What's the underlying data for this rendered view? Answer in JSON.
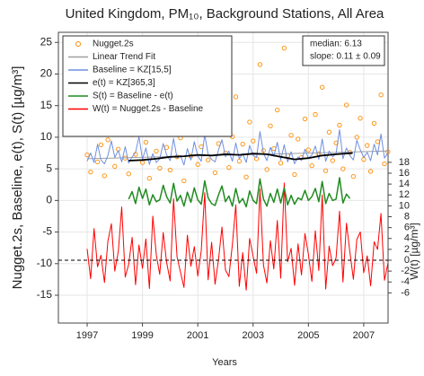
{
  "chart_data": {
    "type": "line",
    "title": "United Kingdom, PM₁₀, Background Stations, All Area",
    "x_label": "Years",
    "y_label": "Nugget.2s, Baseline, e(t), S(t)  [µg/m³]",
    "y2_label": "W(t)  [µg/m³]",
    "annotations": [
      "median: 6.13",
      "slope: 0.11 ± 0.09"
    ],
    "xlim": [
      1995.96,
      2007.88
    ],
    "xticks": [
      1997,
      1999,
      2001,
      2003,
      2005,
      2007
    ],
    "ylim": [
      -19.4,
      26.6
    ],
    "yticks": [
      -15,
      -10,
      -5,
      0,
      5,
      10,
      15,
      20,
      25
    ],
    "y2lim": [
      -11.55,
      41.9
    ],
    "y2ticks": [
      -6,
      -4,
      -2,
      0,
      2,
      4,
      6,
      8,
      10,
      12,
      14,
      16,
      18
    ],
    "y2_ref_line": 0,
    "grid": true,
    "legend": "upper left",
    "x": [
      1997,
      1997.125,
      1997.25,
      1997.375,
      1997.5,
      1997.625,
      1997.75,
      1997.875,
      1998,
      1998.125,
      1998.25,
      1998.375,
      1998.5,
      1998.625,
      1998.75,
      1998.875,
      1999,
      1999.125,
      1999.25,
      1999.375,
      1999.5,
      1999.625,
      1999.75,
      1999.875,
      2000,
      2000.125,
      2000.25,
      2000.375,
      2000.5,
      2000.625,
      2000.75,
      2000.875,
      2001,
      2001.125,
      2001.25,
      2001.375,
      2001.5,
      2001.625,
      2001.75,
      2001.875,
      2002,
      2002.125,
      2002.25,
      2002.375,
      2002.5,
      2002.625,
      2002.75,
      2002.875,
      2003,
      2003.125,
      2003.25,
      2003.375,
      2003.5,
      2003.625,
      2003.75,
      2003.875,
      2004,
      2004.125,
      2004.25,
      2004.375,
      2004.5,
      2004.625,
      2004.75,
      2004.875,
      2005,
      2005.125,
      2005.25,
      2005.375,
      2005.5,
      2005.625,
      2005.75,
      2005.875,
      2006,
      2006.125,
      2006.25,
      2006.375,
      2006.5,
      2006.625,
      2006.75,
      2006.875,
      2007,
      2007.125,
      2007.25,
      2007.375,
      2007.5,
      2007.625,
      2007.75,
      2007.875
    ],
    "series": [
      {
        "name": "Nugget.2s",
        "mode": "markers",
        "color": "#ff8c00",
        "values": [
          7.2,
          4.5,
          11.3,
          6.1,
          8.8,
          3.9,
          9.6,
          13.2,
          5.4,
          8.1,
          15.8,
          6.7,
          4.2,
          10.4,
          7.3,
          12.1,
          6.0,
          9.2,
          3.5,
          14.6,
          7.8,
          5.1,
          11.7,
          8.4,
          4.8,
          17.2,
          6.9,
          9.9,
          3.1,
          12.8,
          7.0,
          10.6,
          5.7,
          8.5,
          19.3,
          6.4,
          11.1,
          4.4,
          9.0,
          13.9,
          7.5,
          5.2,
          10.1,
          16.4,
          6.2,
          8.9,
          3.7,
          12.4,
          9.4,
          6.6,
          21.5,
          7.9,
          4.9,
          11.8,
          8.2,
          14.3,
          5.9,
          24.1,
          7.1,
          10.3,
          4.1,
          9.7,
          6.8,
          12.9,
          8.0,
          5.5,
          13.6,
          7.4,
          17.9,
          4.7,
          10.8,
          6.3,
          9.1,
          11.9,
          5.0,
          15.1,
          7.6,
          3.8,
          10.0,
          13.0,
          6.5,
          8.7,
          4.6,
          12.2,
          9.3,
          16.7,
          5.8,
          7.7
        ]
      },
      {
        "name": "Linear Trend Fit",
        "color": "#a0a0a0",
        "x": [
          1997,
          2007.875
        ],
        "values": [
          6.6,
          7.81
        ]
      },
      {
        "name": "Baseline = KZ[15,5]",
        "color": "#6f8fe0",
        "values": [
          6.2,
          7.5,
          6.0,
          8.9,
          6.4,
          5.8,
          7.1,
          9.4,
          6.8,
          7.9,
          6.1,
          8.5,
          5.9,
          6.9,
          7.6,
          10.1,
          6.5,
          8.3,
          5.7,
          7.4,
          6.0,
          6.6,
          9.0,
          7.2,
          6.3,
          9.8,
          6.7,
          7.1,
          5.6,
          8.2,
          6.4,
          9.3,
          7.0,
          6.2,
          10.4,
          7.3,
          6.5,
          6.1,
          8.0,
          9.6,
          6.9,
          7.8,
          6.2,
          9.1,
          6.6,
          7.4,
          6.0,
          8.7,
          7.1,
          6.8,
          10.9,
          7.5,
          6.3,
          8.4,
          7.0,
          9.2,
          6.4,
          8.8,
          6.1,
          7.7,
          5.8,
          6.9,
          6.3,
          8.1,
          6.7,
          7.2,
          8.6,
          6.5,
          9.7,
          6.2,
          7.8,
          6.9,
          7.4,
          11.2,
          6.6,
          8.3,
          7.1,
          6.4,
          9.5,
          8.0,
          6.8,
          7.6,
          6.3,
          8.9,
          7.2,
          10.5,
          6.7,
          7.5
        ]
      },
      {
        "name": "e(t) = KZ[365,3]",
        "color": "#000000",
        "x": [
          1998.5,
          1999,
          1999.5,
          2000,
          2000.5,
          2001,
          2001.5,
          2002,
          2002.5,
          2003,
          2003.5,
          2004,
          2004.5,
          2005,
          2005.5,
          2006,
          2006.6
        ],
        "values": [
          6.3,
          6.4,
          6.6,
          6.9,
          7.0,
          7.2,
          7.1,
          7.3,
          7.2,
          7.4,
          7.3,
          6.9,
          6.5,
          6.7,
          7.1,
          7.3,
          7.5
        ]
      },
      {
        "name": "S(t) = Baseline - e(t)",
        "color": "#228b22",
        "values": [
          null,
          null,
          null,
          null,
          null,
          null,
          null,
          null,
          null,
          null,
          null,
          null,
          0.2,
          1.4,
          -0.5,
          2.1,
          0.3,
          1.8,
          -0.7,
          0.9,
          -0.2,
          0.1,
          2.4,
          0.6,
          -0.4,
          2.7,
          -0.1,
          0.8,
          -0.9,
          1.3,
          -0.3,
          2.0,
          0.1,
          -0.6,
          3.1,
          0.4,
          -0.5,
          -0.8,
          0.9,
          2.3,
          -0.2,
          0.7,
          -0.9,
          1.9,
          -0.4,
          0.3,
          -1.0,
          1.5,
          0.0,
          -0.5,
          3.4,
          0.2,
          -0.9,
          1.1,
          -0.3,
          1.8,
          -0.4,
          2.0,
          -0.7,
          0.8,
          -0.6,
          0.4,
          0.1,
          1.6,
          0.0,
          0.6,
          1.9,
          -0.2,
          3.0,
          -0.5,
          1.1,
          0.0,
          0.2,
          3.6,
          -0.4,
          1.0,
          0.3,
          null,
          null,
          null,
          null,
          null,
          null,
          null,
          null,
          null,
          null,
          null
        ]
      },
      {
        "name": "W(t) = Nugget.2s - Baseline",
        "color": "#ff0000",
        "axis": "y2",
        "values": [
          2.1,
          -3.4,
          5.8,
          -1.2,
          0.9,
          -4.1,
          3.5,
          6.7,
          -2.0,
          1.6,
          9.8,
          -3.1,
          -0.8,
          4.2,
          -4.5,
          2.8,
          -1.5,
          3.9,
          -5.2,
          8.1,
          1.0,
          -2.6,
          5.1,
          -0.4,
          -3.8,
          11.3,
          0.6,
          -2.2,
          -5.0,
          4.6,
          -1.1,
          2.5,
          -2.9,
          1.7,
          12.4,
          -3.6,
          3.3,
          -4.4,
          0.2,
          6.1,
          -1.8,
          -3.0,
          2.9,
          10.2,
          -4.8,
          1.4,
          -5.5,
          4.0,
          0.7,
          -2.4,
          13.1,
          -0.9,
          -4.2,
          3.6,
          -1.6,
          7.3,
          -3.3,
          14.2,
          -0.3,
          2.2,
          -4.6,
          3.0,
          -2.7,
          4.9,
          1.1,
          -3.9,
          5.4,
          -1.9,
          12.0,
          -5.3,
          2.6,
          -1.0,
          0.4,
          9.0,
          -4.0,
          6.8,
          1.5,
          -3.5,
          3.8,
          5.2,
          -2.3,
          0.8,
          -4.7,
          3.4,
          2.0,
          8.6,
          -3.7,
          -0.6
        ]
      }
    ]
  }
}
